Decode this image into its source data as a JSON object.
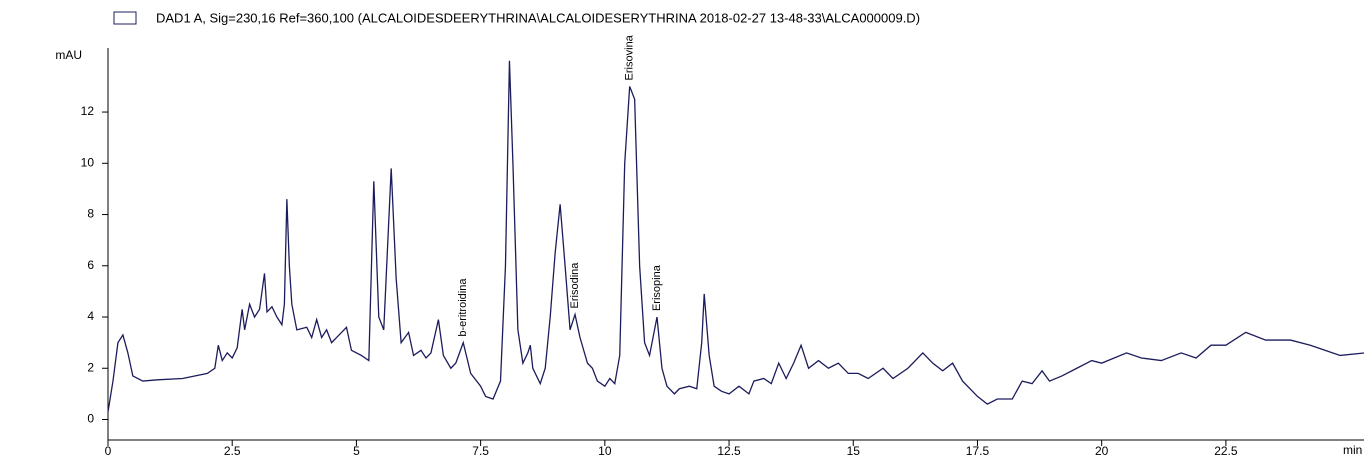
{
  "chart_data": {
    "type": "line",
    "ylabel": "mAU",
    "xlabel": "min",
    "xlim": [
      0,
      25.3
    ],
    "ylim": [
      -0.8,
      14.5
    ],
    "xticks": [
      0,
      2.5,
      5,
      7.5,
      10,
      12.5,
      15,
      17.5,
      20,
      22.5
    ],
    "yticks": [
      0,
      2,
      4,
      6,
      8,
      10,
      12
    ],
    "legend": "top-left",
    "x": [
      0,
      0.1,
      0.2,
      0.3,
      0.4,
      0.5,
      0.7,
      1.0,
      1.5,
      2.0,
      2.15,
      2.22,
      2.3,
      2.4,
      2.5,
      2.6,
      2.7,
      2.75,
      2.85,
      2.95,
      3.05,
      3.15,
      3.2,
      3.3,
      3.4,
      3.5,
      3.55,
      3.6,
      3.65,
      3.7,
      3.8,
      4.0,
      4.1,
      4.2,
      4.3,
      4.4,
      4.5,
      4.6,
      4.8,
      4.9,
      5.1,
      5.25,
      5.35,
      5.45,
      5.55,
      5.7,
      5.8,
      5.9,
      6.05,
      6.15,
      6.3,
      6.4,
      6.5,
      6.65,
      6.75,
      6.9,
      7.0,
      7.15,
      7.3,
      7.5,
      7.6,
      7.75,
      7.9,
      8.0,
      8.08,
      8.15,
      8.25,
      8.35,
      8.45,
      8.5,
      8.55,
      8.7,
      8.8,
      8.9,
      9.0,
      9.1,
      9.2,
      9.3,
      9.4,
      9.5,
      9.65,
      9.75,
      9.85,
      10.0,
      10.1,
      10.2,
      10.3,
      10.4,
      10.5,
      10.6,
      10.7,
      10.8,
      10.9,
      11.05,
      11.15,
      11.25,
      11.4,
      11.5,
      11.7,
      11.85,
      11.95,
      12.0,
      12.1,
      12.2,
      12.35,
      12.5,
      12.7,
      12.9,
      13.0,
      13.2,
      13.35,
      13.5,
      13.65,
      13.8,
      13.95,
      14.1,
      14.3,
      14.5,
      14.7,
      14.9,
      15.1,
      15.3,
      15.6,
      15.8,
      16.1,
      16.4,
      16.6,
      16.8,
      17.0,
      17.2,
      17.5,
      17.7,
      17.9,
      18.2,
      18.4,
      18.6,
      18.8,
      18.95,
      19.2,
      19.5,
      19.8,
      20.0,
      20.5,
      20.8,
      21.2,
      21.6,
      21.9,
      22.2,
      22.5,
      22.9,
      23.3,
      23.8,
      24.2,
      24.5,
      24.8,
      25.3
    ],
    "series": [
      {
        "name": "DAD1 A, Sig=230,16 Ref=360,100 (ALCALOIDESDEERYTHRINA\\ALCALOIDESERYTHRINA 2018-02-27 13-48-33\\ALCA000009.D)",
        "color": "#1c1c5c",
        "values": [
          0.3,
          1.5,
          3.0,
          3.3,
          2.6,
          1.7,
          1.5,
          1.55,
          1.6,
          1.8,
          2.0,
          2.9,
          2.3,
          2.6,
          2.4,
          2.8,
          4.3,
          3.5,
          4.5,
          4.0,
          4.3,
          5.7,
          4.2,
          4.4,
          4.0,
          3.7,
          4.5,
          8.6,
          6.0,
          4.5,
          3.5,
          3.6,
          3.2,
          3.9,
          3.2,
          3.5,
          3.0,
          3.2,
          3.6,
          2.7,
          2.5,
          2.3,
          9.3,
          4.0,
          3.5,
          9.8,
          5.5,
          3.0,
          3.4,
          2.5,
          2.7,
          2.4,
          2.6,
          3.9,
          2.5,
          2.0,
          2.2,
          3.0,
          1.8,
          1.3,
          0.9,
          0.8,
          1.5,
          6.0,
          14.0,
          10.0,
          3.5,
          2.2,
          2.6,
          2.9,
          2.0,
          1.4,
          2.0,
          4.0,
          6.5,
          8.4,
          6.0,
          3.5,
          4.1,
          3.2,
          2.2,
          2.0,
          1.5,
          1.3,
          1.6,
          1.4,
          2.5,
          10.0,
          13.0,
          12.5,
          6.0,
          3.0,
          2.5,
          4.0,
          2.0,
          1.3,
          1.0,
          1.2,
          1.3,
          1.2,
          3.0,
          4.9,
          2.5,
          1.3,
          1.1,
          1.0,
          1.3,
          1.0,
          1.5,
          1.6,
          1.4,
          2.2,
          1.6,
          2.2,
          2.9,
          2.0,
          2.3,
          2.0,
          2.2,
          1.8,
          1.8,
          1.6,
          2.0,
          1.6,
          2.0,
          2.6,
          2.2,
          1.9,
          2.2,
          1.5,
          0.9,
          0.6,
          0.8,
          0.8,
          1.5,
          1.4,
          1.9,
          1.5,
          1.7,
          2.0,
          2.3,
          2.2,
          2.6,
          2.4,
          2.3,
          2.6,
          2.4,
          2.9,
          2.9,
          3.4,
          3.1,
          3.1,
          2.9,
          2.7,
          2.5,
          2.6
        ]
      }
    ],
    "annotations": [
      {
        "text": "b-eritroidina",
        "x": 7.15
      },
      {
        "text": "Erisodina",
        "x": 9.4
      },
      {
        "text": "Erisovina",
        "x": 10.5
      },
      {
        "text": "Erisopina",
        "x": 11.05
      }
    ]
  }
}
